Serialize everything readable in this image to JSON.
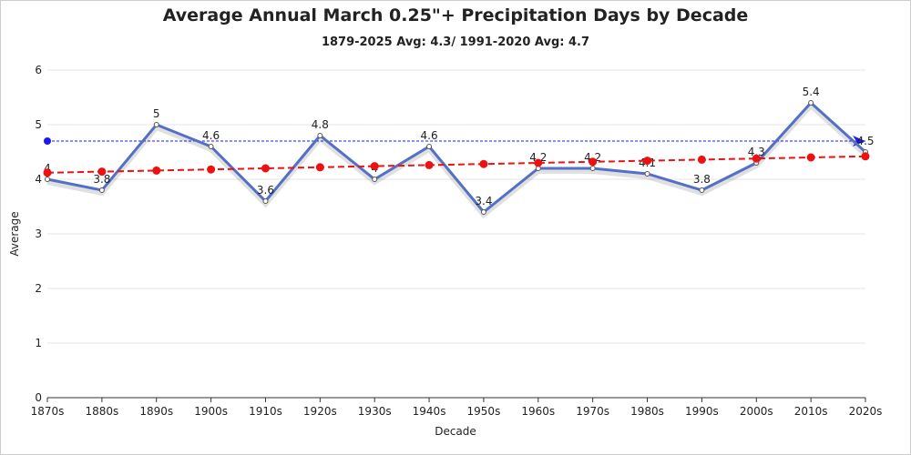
{
  "chart_data": {
    "type": "line",
    "title": "Average Annual March 0.25\"+ Precipitation Days by Decade",
    "subtitle": "1879-2025 Avg: 4.3/ 1991-2020 Avg: 4.7",
    "x_label": "Decade",
    "y_label": "Average",
    "categories": [
      "1870s",
      "1880s",
      "1890s",
      "1900s",
      "1910s",
      "1920s",
      "1930s",
      "1940s",
      "1950s",
      "1960s",
      "1970s",
      "1980s",
      "1990s",
      "2000s",
      "2010s",
      "2020s"
    ],
    "series": [
      {
        "color": "#5470c6",
        "values": [
          4,
          3.8,
          5,
          4.6,
          3.6,
          4.8,
          4,
          4.6,
          3.4,
          4.2,
          4.2,
          4.1,
          3.8,
          4.3,
          5.4,
          4.5
        ],
        "data_labels": true,
        "style": "solid"
      },
      {
        "color": "#ee1111",
        "values": [
          4.12,
          4.14,
          4.16,
          4.18,
          4.2,
          4.22,
          4.24,
          4.26,
          4.28,
          4.3,
          4.32,
          4.34,
          4.36,
          4.38,
          4.4,
          4.42
        ],
        "data_labels": false,
        "style": "dashed"
      }
    ],
    "reference_line": {
      "value": 4.7,
      "color": "#1a1aee"
    },
    "ylim": [
      0,
      6
    ],
    "yticks": [
      0,
      1,
      2,
      3,
      4,
      5,
      6
    ],
    "grid": true
  }
}
